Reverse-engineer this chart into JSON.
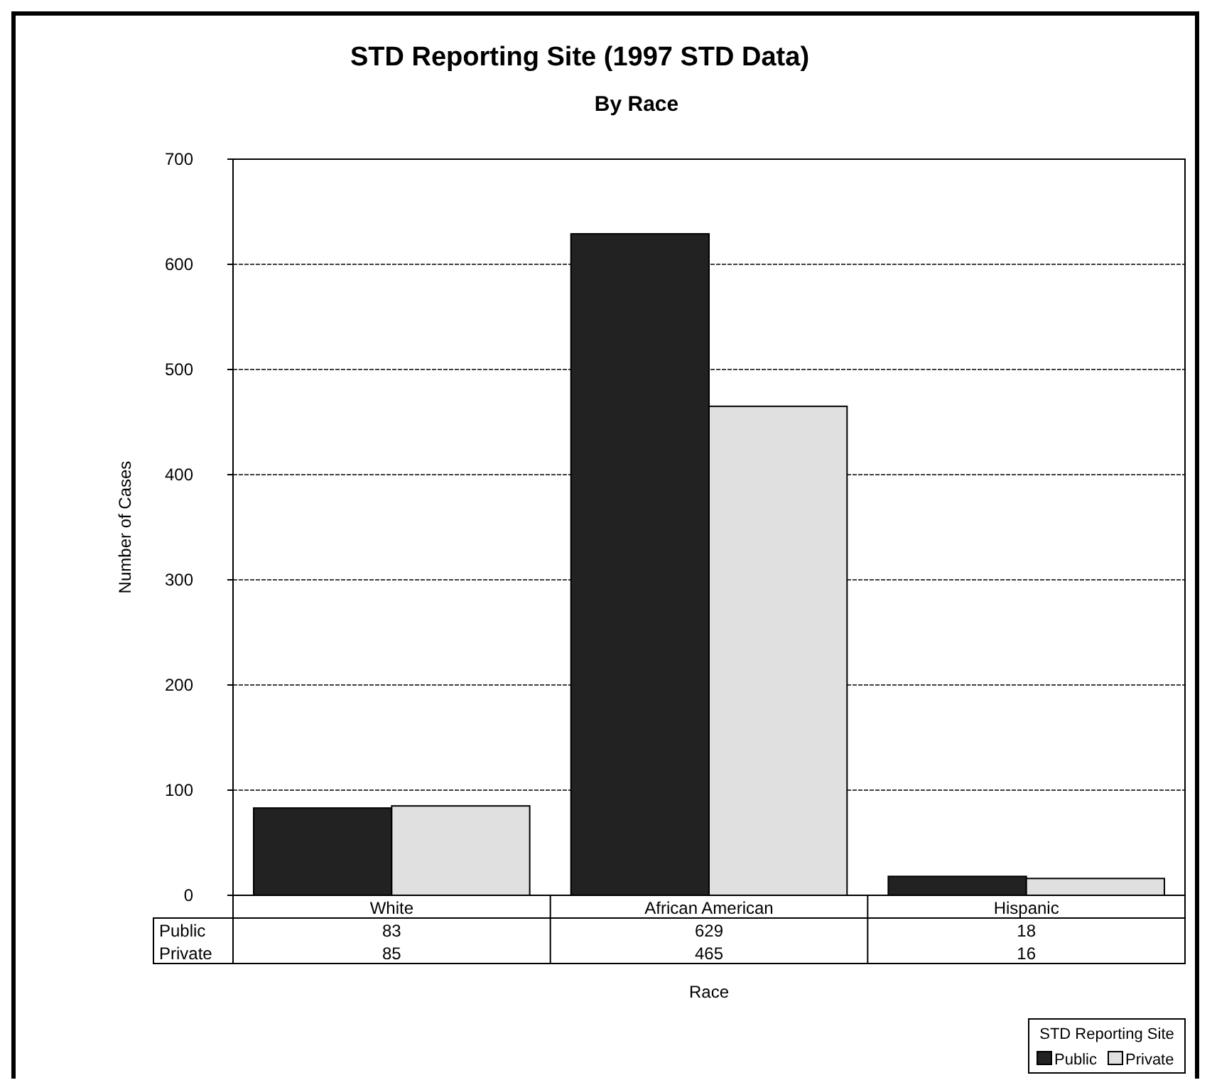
{
  "chart_data": {
    "type": "bar",
    "title": "STD Reporting Site (1997 STD Data)",
    "subtitle": "By Race",
    "xlabel": "Race",
    "ylabel": "Number of Cases",
    "legend_title": "STD Reporting Site",
    "categories": [
      "White",
      "African American",
      "Hispanic"
    ],
    "series": [
      {
        "name": "Public",
        "color": "#222222",
        "values": [
          83,
          629,
          18
        ]
      },
      {
        "name": "Private",
        "color": "#e0e0e0",
        "values": [
          85,
          465,
          16
        ]
      }
    ],
    "ylim": [
      0,
      700
    ],
    "yticks": [
      0,
      100,
      200,
      300,
      400,
      500,
      600,
      700
    ],
    "grid": "y",
    "data_labels": true,
    "legend": "bottom right"
  }
}
